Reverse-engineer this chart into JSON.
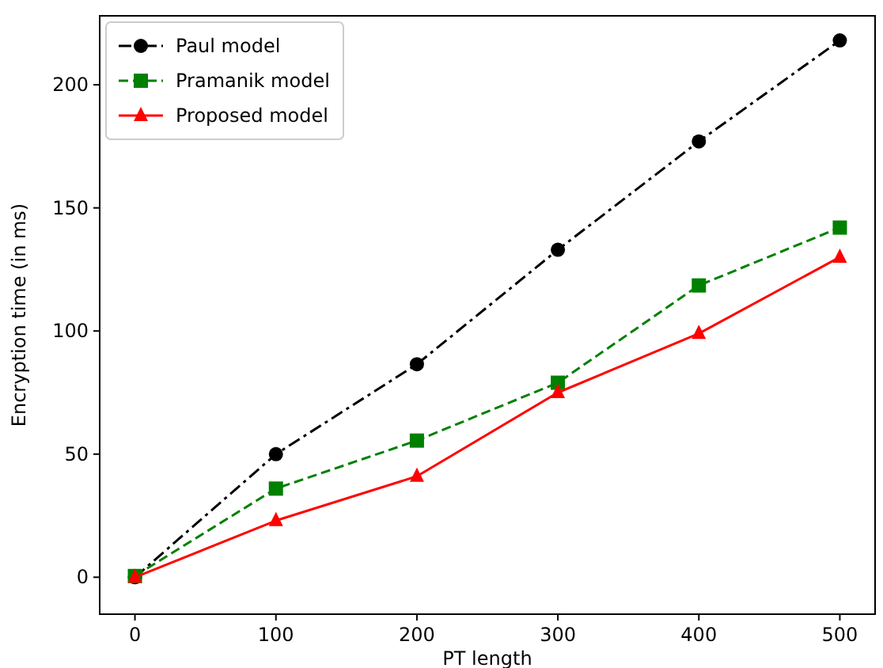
{
  "chart_data": {
    "type": "line",
    "xlabel": "PT length",
    "ylabel": "Encryption time (in ms)",
    "x": [
      0,
      100,
      200,
      300,
      400,
      500
    ],
    "xlim": [
      -25,
      525
    ],
    "xticks": [
      0,
      100,
      200,
      300,
      400,
      500
    ],
    "ylim": [
      -15,
      228
    ],
    "yticks": [
      0,
      50,
      100,
      150,
      200
    ],
    "grid": false,
    "legend": "top left",
    "series": [
      {
        "name": "Paul model",
        "color": "#000000",
        "marker": "circle",
        "line_style": "dashdot",
        "values": [
          0,
          50,
          86.5,
          133,
          177,
          218
        ]
      },
      {
        "name": "Pramanik model",
        "color": "#008000",
        "marker": "square",
        "line_style": "dashed",
        "values": [
          0.5,
          36,
          55.5,
          79,
          118.5,
          142
        ]
      },
      {
        "name": "Proposed model",
        "color": "#ff0000",
        "marker": "triangle",
        "line_style": "solid",
        "values": [
          0,
          23,
          41,
          75,
          99,
          130
        ]
      }
    ]
  }
}
